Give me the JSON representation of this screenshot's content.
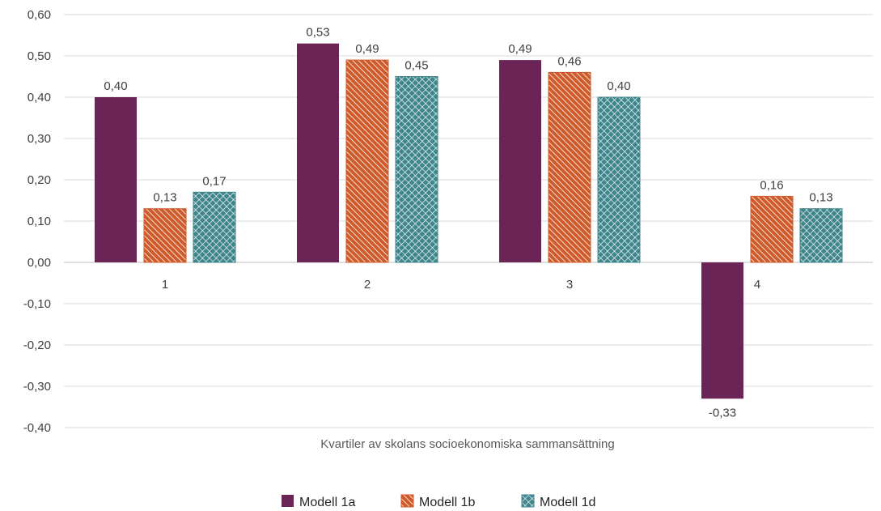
{
  "chart_data": {
    "type": "bar",
    "title": "",
    "xlabel": "Kvartiler av skolans socioekonomiska sammansättning",
    "ylabel": "",
    "ylim": [
      -0.4,
      0.6
    ],
    "y_ticks": [
      "-0,40",
      "-0,30",
      "-0,20",
      "-0,10",
      "0,00",
      "0,10",
      "0,20",
      "0,30",
      "0,40",
      "0,50",
      "0,60"
    ],
    "categories": [
      "1",
      "2",
      "3",
      "4"
    ],
    "grid": true,
    "legend_position": "bottom",
    "series": [
      {
        "name": "Modell 1a",
        "color": "#6a2556",
        "pattern": "solid",
        "values": [
          0.4,
          0.53,
          0.49,
          -0.33
        ],
        "labels": [
          "0,40",
          "0,53",
          "0,49",
          "-0,33"
        ]
      },
      {
        "name": "Modell 1b",
        "color": "#cf5a2a",
        "pattern": "diagonal-hatch",
        "values": [
          0.13,
          0.49,
          0.46,
          0.16
        ],
        "labels": [
          "0,13",
          "0,49",
          "0,46",
          "0,16"
        ]
      },
      {
        "name": "Modell 1d",
        "color": "#3e858c",
        "pattern": "crosshatch",
        "values": [
          0.17,
          0.45,
          0.4,
          0.13
        ],
        "labels": [
          "0,17",
          "0,45",
          "0,40",
          "0,13"
        ]
      }
    ]
  }
}
